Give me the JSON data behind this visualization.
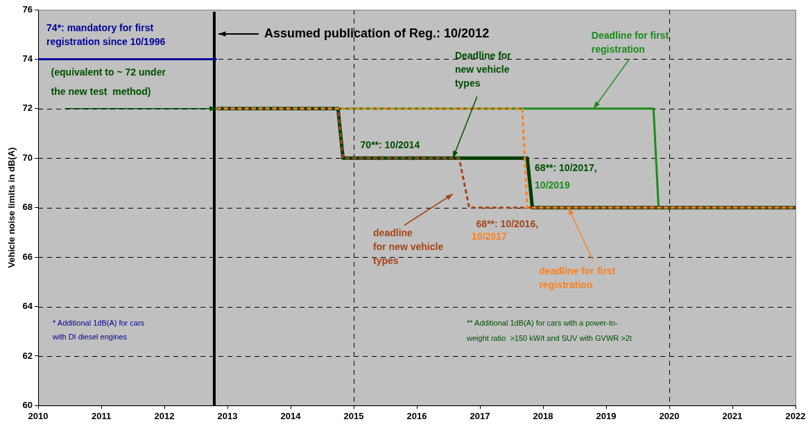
{
  "chart_data": {
    "type": "line",
    "ylabel": "Vehicle noise limits in dB(A)",
    "xlim": [
      2010,
      2022
    ],
    "xticks": [
      2010,
      2011,
      2012,
      2013,
      2014,
      2015,
      2016,
      2017,
      2018,
      2019,
      2020,
      2021,
      2022
    ],
    "ylim": [
      60,
      76
    ],
    "yticks": [
      60,
      62,
      64,
      66,
      68,
      70,
      72,
      74,
      76
    ],
    "grid": true,
    "legend": false,
    "marker": "none",
    "series": [
      {
        "color": "#000099",
        "line_style": "solid",
        "x": [
          2010,
          2012.83
        ],
        "values": [
          74,
          74
        ]
      },
      {
        "color": "#1a8c1a",
        "line_style": "solid",
        "x": [
          2012.83,
          2019.75,
          2019.83,
          2022
        ],
        "values": [
          72,
          72,
          68,
          68
        ]
      },
      {
        "color": "#003d00",
        "line_style": "solid",
        "x": [
          2012.83,
          2014.75,
          2014.83,
          2017.75,
          2017.83,
          2022
        ],
        "values": [
          72,
          72,
          70,
          70,
          68,
          68
        ]
      },
      {
        "color": "#a4441a",
        "line_style": "dashed",
        "x": [
          2012.83,
          2014.75,
          2014.83,
          2016.67,
          2016.83,
          2022
        ],
        "values": [
          72,
          72,
          70,
          70,
          68,
          68
        ]
      },
      {
        "color": "#ff8020",
        "line_style": "dashed",
        "x": [
          2012.83,
          2017.67,
          2017.75,
          2022
        ],
        "values": [
          72,
          72,
          68,
          68
        ]
      }
    ],
    "ref_lines": [
      {
        "axis": "x",
        "value": 2012.79,
        "color": "#000000"
      }
    ],
    "annotations": [
      "74*: mandatory for first\nregistration since 10/1996",
      {
        "text": "(equivalent to ~ 72 under\nthe new test  method)",
        "x": 2012.83,
        "y": 72
      },
      {
        "text": "Deadline for first\nregistration",
        "x": 2018.8,
        "y": 72
      },
      {
        "text": "Deadline for\nnew vehicle\ntypes",
        "x": 2016.57,
        "y": 70
      },
      {
        "text": "70**: 10/2014",
        "x": 2014.83,
        "y": 70
      },
      "68**: 10/2017,",
      "10/2019",
      {
        "text": "68**: 10/2016,",
        "x": 2016.83,
        "y": 68
      },
      "10/2017",
      "deadline\nfor new vehicle\ntypes",
      {
        "text": "deadline for first\nregistration",
        "x": 2018.4,
        "y": 68
      },
      "* Additional 1dB(A) for cars\nwith DI diesel engines",
      "** Additional 1dB(A) for cars with a power-to-\nweight ratio  >150 kW/t and SUV with GVWR >2t",
      "Assumed publication of Reg.: 10/2012"
    ]
  }
}
